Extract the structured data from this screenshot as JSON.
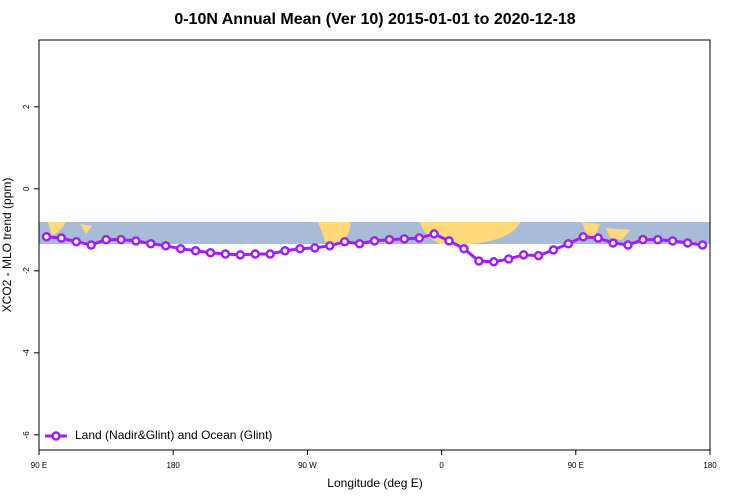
{
  "chart_data": {
    "type": "line",
    "title": "0-10N Annual Mean (Ver 10)   2015-01-01 to 2020-12-18",
    "x_label": "Longitude (deg E)",
    "y_label": "XCO2 - MLO trend (ppm)",
    "x": [
      95,
      105,
      115,
      125,
      135,
      145,
      155,
      165,
      175,
      185,
      195,
      205,
      215,
      225,
      235,
      245,
      255,
      265,
      275,
      285,
      295,
      305,
      315,
      325,
      335,
      345,
      355,
      365,
      375,
      385,
      395,
      405,
      415,
      425,
      435,
      445,
      455,
      465,
      475,
      485,
      495,
      505,
      515,
      525,
      535
    ],
    "series": [
      {
        "name": "Land (Nadir&Glint) and Ocean (Glint)",
        "color": "#a020f0",
        "values": [
          -1.17,
          -1.2,
          -1.29,
          -1.37,
          -1.24,
          -1.24,
          -1.27,
          -1.34,
          -1.39,
          -1.46,
          -1.51,
          -1.56,
          -1.59,
          -1.61,
          -1.59,
          -1.59,
          -1.51,
          -1.46,
          -1.44,
          -1.39,
          -1.29,
          -1.34,
          -1.27,
          -1.24,
          -1.22,
          -1.2,
          -1.1,
          -1.27,
          -1.46,
          -1.76,
          -1.78,
          -1.71,
          -1.61,
          -1.63,
          -1.49,
          -1.34,
          -1.17,
          -1.2,
          -1.32,
          -1.37,
          -1.24,
          -1.24,
          -1.27,
          -1.32,
          -1.37
        ]
      }
    ],
    "xlim": [
      90,
      540
    ],
    "xticks": [
      {
        "value": 90,
        "label": "90 E"
      },
      {
        "value": 180,
        "label": "180"
      },
      {
        "value": 270,
        "label": "90 W"
      },
      {
        "value": 360,
        "label": "0"
      },
      {
        "value": 450,
        "label": "90 E"
      },
      {
        "value": 540,
        "label": "180"
      }
    ],
    "ylim": [
      -6.37,
      3.63
    ],
    "yticks": [
      -6,
      -4,
      -2,
      0,
      2
    ],
    "legend": "bottom-left"
  }
}
